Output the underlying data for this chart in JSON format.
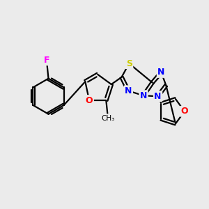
{
  "background_color": "#ebebeb",
  "bond_color": "#000000",
  "atom_colors": {
    "F": "#ff00ff",
    "O": "#ff0000",
    "N": "#0000ff",
    "S": "#cccc00",
    "C": "#000000"
  },
  "figsize": [
    3.0,
    3.0
  ],
  "dpi": 100
}
